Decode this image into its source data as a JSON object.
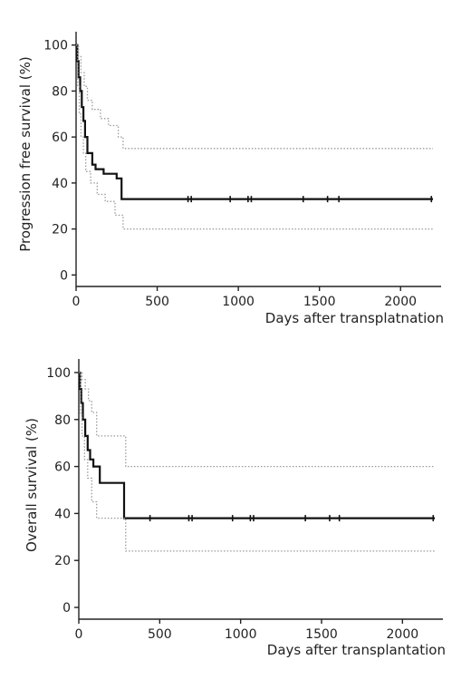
{
  "chart_data": [
    {
      "type": "line",
      "xlabel": "Days after transplatnation",
      "ylabel": "Progression free survival (%)",
      "xlim": [
        0,
        2250
      ],
      "ylim": [
        -5,
        105
      ],
      "xticks": [
        0,
        500,
        1000,
        1500,
        2000
      ],
      "yticks": [
        0,
        20,
        40,
        60,
        80,
        100
      ],
      "series": [
        {
          "role": "estimate",
          "points": [
            [
              0,
              100
            ],
            [
              8,
              93
            ],
            [
              15,
              86
            ],
            [
              25,
              80
            ],
            [
              35,
              73
            ],
            [
              45,
              67
            ],
            [
              55,
              60
            ],
            [
              70,
              53
            ],
            [
              100,
              48
            ],
            [
              120,
              46
            ],
            [
              170,
              44
            ],
            [
              250,
              42
            ],
            [
              280,
              33
            ],
            [
              2200,
              33
            ]
          ]
        },
        {
          "role": "upper",
          "points": [
            [
              0,
              100
            ],
            [
              15,
              95
            ],
            [
              30,
              88
            ],
            [
              50,
              82
            ],
            [
              70,
              76
            ],
            [
              100,
              72
            ],
            [
              150,
              68
            ],
            [
              200,
              65
            ],
            [
              260,
              60
            ],
            [
              290,
              55
            ],
            [
              2200,
              55
            ]
          ]
        },
        {
          "role": "lower",
          "points": [
            [
              0,
              100
            ],
            [
              10,
              82
            ],
            [
              20,
              70
            ],
            [
              30,
              60
            ],
            [
              45,
              53
            ],
            [
              60,
              45
            ],
            [
              90,
              40
            ],
            [
              130,
              35
            ],
            [
              180,
              32
            ],
            [
              240,
              26
            ],
            [
              290,
              20
            ],
            [
              2200,
              20
            ]
          ]
        }
      ],
      "censored": [
        690,
        710,
        950,
        1060,
        1080,
        1400,
        1550,
        1620,
        2190
      ]
    },
    {
      "type": "line",
      "xlabel": "Days after transplantation",
      "ylabel": "Overall survival (%)",
      "xlim": [
        0,
        2250
      ],
      "ylim": [
        -5,
        105
      ],
      "xticks": [
        0,
        500,
        1000,
        1500,
        2000
      ],
      "yticks": [
        0,
        20,
        40,
        60,
        80,
        100
      ],
      "series": [
        {
          "role": "estimate",
          "points": [
            [
              0,
              100
            ],
            [
              8,
              93
            ],
            [
              15,
              87
            ],
            [
              25,
              80
            ],
            [
              40,
              73
            ],
            [
              55,
              67
            ],
            [
              70,
              63
            ],
            [
              90,
              60
            ],
            [
              130,
              53
            ],
            [
              260,
              53
            ],
            [
              280,
              38
            ],
            [
              2200,
              38
            ]
          ]
        },
        {
          "role": "upper",
          "points": [
            [
              0,
              100
            ],
            [
              20,
              97
            ],
            [
              40,
              93
            ],
            [
              60,
              88
            ],
            [
              80,
              83
            ],
            [
              110,
              73
            ],
            [
              260,
              73
            ],
            [
              290,
              60
            ],
            [
              2200,
              60
            ]
          ]
        },
        {
          "role": "lower",
          "points": [
            [
              0,
              100
            ],
            [
              10,
              82
            ],
            [
              20,
              73
            ],
            [
              35,
              63
            ],
            [
              55,
              55
            ],
            [
              80,
              45
            ],
            [
              110,
              38
            ],
            [
              260,
              38
            ],
            [
              290,
              24
            ],
            [
              2200,
              24
            ]
          ]
        }
      ],
      "censored": [
        440,
        680,
        700,
        950,
        1060,
        1080,
        1400,
        1550,
        1610,
        2190
      ]
    }
  ]
}
